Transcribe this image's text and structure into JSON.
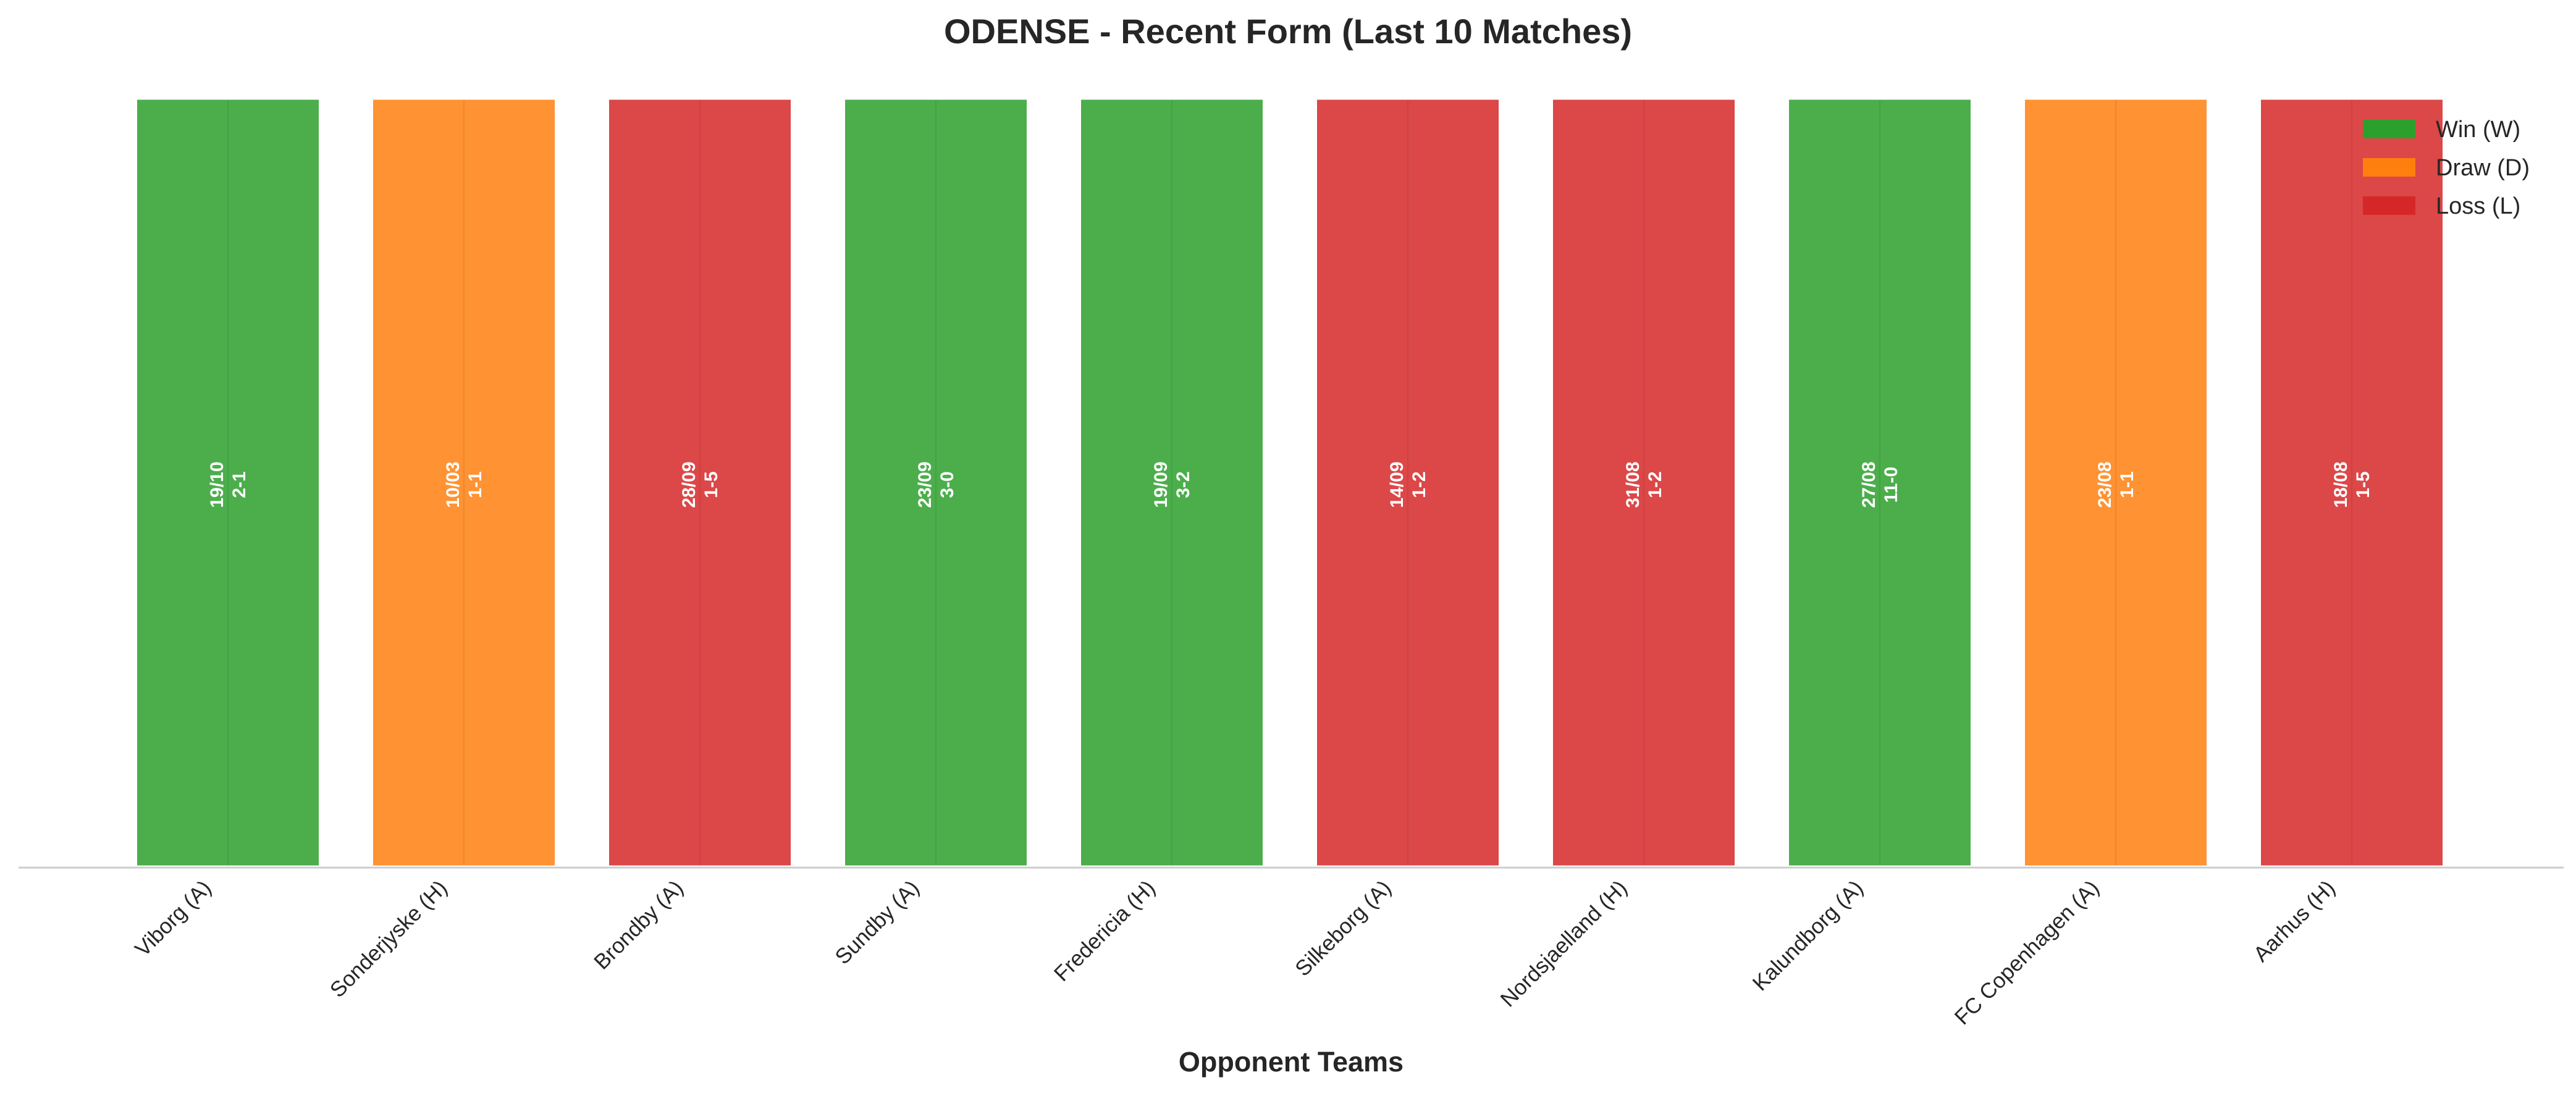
{
  "chart_data": {
    "type": "bar",
    "title": "ODENSE - Recent Form (Last 10 Matches)",
    "xlabel": "Opponent Teams",
    "ylabel": "",
    "grid": false,
    "legend_position": "top-right",
    "categories": [
      "Viborg (A)",
      "Sonderjyske (H)",
      "Brondby (A)",
      "Sundby (A)",
      "Fredericia (H)",
      "Silkeborg (A)",
      "Nordsjaelland (H)",
      "Kalundborg (A)",
      "FC Copenhagen (A)",
      "Aarhus (H)"
    ],
    "values": [
      1,
      1,
      1,
      1,
      1,
      1,
      1,
      1,
      1,
      1
    ],
    "results": [
      "W",
      "D",
      "L",
      "W",
      "W",
      "L",
      "L",
      "W",
      "D",
      "L"
    ],
    "dates": [
      "19/10",
      "10/03",
      "28/09",
      "23/09",
      "19/09",
      "14/09",
      "31/08",
      "27/08",
      "23/08",
      "18/08"
    ],
    "scores": [
      "2-1",
      "1-1",
      "1-5",
      "3-0",
      "3-2",
      "1-2",
      "1-2",
      "11-0",
      "1-1",
      "1-5"
    ],
    "legend": [
      {
        "key": "W",
        "label": "Win (W)",
        "color": "#2ca02c"
      },
      {
        "key": "D",
        "label": "Draw (D)",
        "color": "#ff7f0e"
      },
      {
        "key": "L",
        "label": "Loss (L)",
        "color": "#d62728"
      }
    ]
  }
}
